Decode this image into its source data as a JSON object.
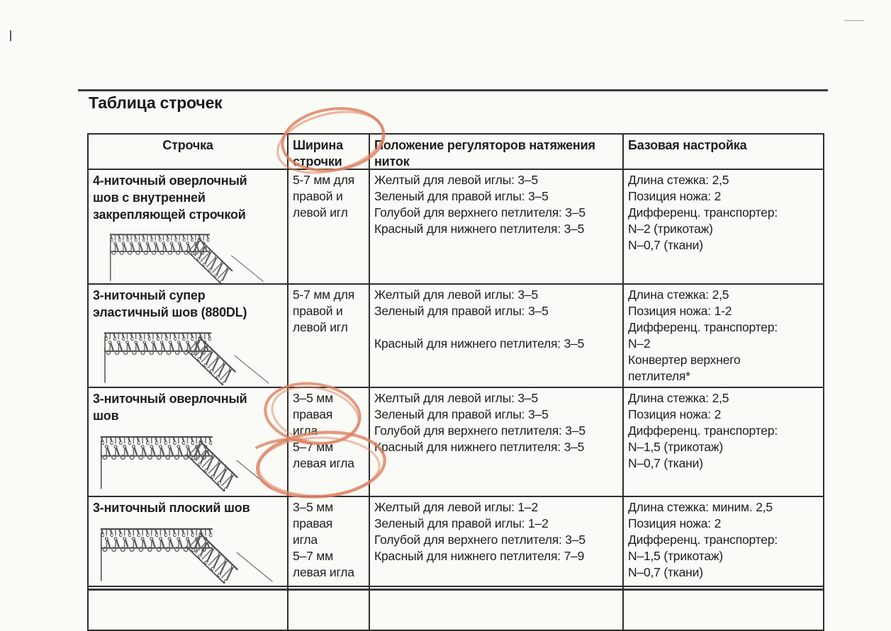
{
  "page": {
    "title": "Таблица строчек"
  },
  "annotation_color": "#dd8263",
  "paper_color": "#fafaf6",
  "ink_color": "#1e1e1e",
  "table": {
    "headers": {
      "stitch": "Строчка",
      "width": "Ширина строчки",
      "tension": "Положение регуляторов натяжения ниток",
      "settings": "Базовая настройка"
    },
    "rows": [
      {
        "stitch_lines": [
          "4-ниточный оверлочный",
          "шов с внутренней",
          "закрепляющей строчкой"
        ],
        "width_lines": [
          "5-7 мм для",
          "правой и",
          "левой игл"
        ],
        "tension_lines": [
          "Желтый для левой иглы: 3–5",
          "Зеленый для правой иглы: 3–5",
          "Голубой для верхнего петлителя: 3–5",
          "Красный для нижнего петлителя: 3–5"
        ],
        "settings_lines": [
          "Длина стежка: 2,5",
          "Позиция ножа: 2",
          "Дифференц. транспортер:",
          "N–2 (трикотаж)",
          "N–0,7 (ткани)"
        ]
      },
      {
        "stitch_lines": [
          "3-ниточный супер",
          "эластичный шов (880DL)"
        ],
        "width_lines": [
          "5-7 мм для",
          "правой и",
          "левой игл"
        ],
        "tension_lines": [
          "Желтый для левой иглы: 3–5",
          "Зеленый для правой иглы: 3–5",
          "",
          "Красный для нижнего петлителя: 3–5"
        ],
        "settings_lines": [
          "Длина стежка: 2,5",
          "Позиция ножа: 1-2",
          "Дифференц. транспортер:",
          "N–2",
          "Конвертер верхнего",
          "петлителя*"
        ]
      },
      {
        "stitch_lines": [
          "3-ниточный оверлочный",
          "шов"
        ],
        "width_lines": [
          "3–5 мм",
          "правая",
          "игла",
          "5–7 мм",
          "левая игла"
        ],
        "tension_lines": [
          "Желтый для левой иглы: 3–5",
          "Зеленый для правой иглы: 3–5",
          "Голубой для верхнего петлителя: 3–5",
          "Красный для нижнего петлителя: 3–5"
        ],
        "settings_lines": [
          "Длина стежка: 2,5",
          "Позиция ножа: 2",
          "Дифференц. транспортер:",
          "N–1,5 (трикотаж)",
          "N–0,7 (ткани)"
        ]
      },
      {
        "stitch_lines": [
          "3-ниточный плоский шов"
        ],
        "width_lines": [
          "3–5 мм",
          "правая",
          "игла",
          "5–7 мм",
          "левая игла"
        ],
        "tension_lines": [
          "Желтый для левой иглы: 1–2",
          "Зеленый для правой иглы: 1–2",
          "Голубой для верхнего петлителя: 3–5",
          "Красный для нижнего петлителя: 7–9"
        ],
        "settings_lines": [
          "Длина стежка: миним. 2,5",
          "Позиция ножа: 2",
          "Дифференц. транспортер:",
          "N–1,5 (трикотаж)",
          "N–0,7 (ткани)"
        ]
      }
    ]
  }
}
